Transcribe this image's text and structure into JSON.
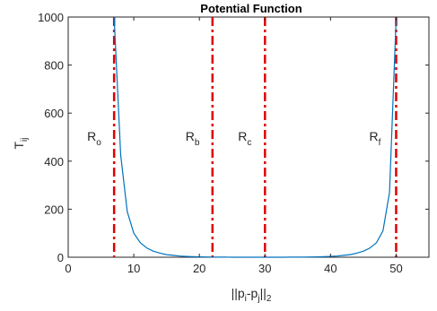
{
  "chart_data": {
    "type": "line",
    "title": "Potential Function",
    "xlabel": {
      "base": "||p",
      "sub1": "i",
      "mid": "-p",
      "sub2": "j",
      "close": "||",
      "sub3": "2"
    },
    "ylabel": {
      "base": "T",
      "sub": "ij"
    },
    "xlim": [
      0,
      55
    ],
    "ylim": [
      0,
      1000
    ],
    "xticks": [
      0,
      10,
      20,
      30,
      40,
      50
    ],
    "yticks": [
      0,
      200,
      400,
      600,
      800,
      1000
    ],
    "grid": true,
    "line_color": "#0072bd",
    "marker_color": "#e00000",
    "series": [
      {
        "x": [
          7,
          8,
          9,
          10,
          11,
          12,
          13,
          14,
          15,
          16,
          17,
          18,
          19,
          20,
          21,
          22,
          23,
          24,
          25,
          26,
          27,
          28,
          29,
          30,
          31,
          32,
          33,
          34,
          35,
          36,
          37,
          38,
          39,
          40,
          41,
          42,
          43,
          44,
          45,
          46,
          47,
          48,
          49,
          50
        ],
        "values": [
          1000,
          425,
          190,
          100,
          60,
          38,
          25,
          17,
          11,
          8,
          5,
          3.5,
          2.3,
          1.5,
          1,
          0.6,
          0.4,
          0.25,
          0.15,
          0.1,
          0.1,
          0.1,
          0.1,
          0.1,
          0.1,
          0.1,
          0.15,
          0.25,
          0.4,
          0.6,
          1,
          1.5,
          2.3,
          3.5,
          5,
          8,
          11,
          17,
          25,
          38,
          60,
          110,
          270,
          1000
        ]
      }
    ],
    "markers": [
      {
        "x": 7,
        "label_base": "R",
        "label_sub": "o"
      },
      {
        "x": 22,
        "label_base": "R",
        "label_sub": "b"
      },
      {
        "x": 30,
        "label_base": "R",
        "label_sub": "c"
      },
      {
        "x": 50,
        "label_base": "R",
        "label_sub": "f"
      }
    ]
  }
}
